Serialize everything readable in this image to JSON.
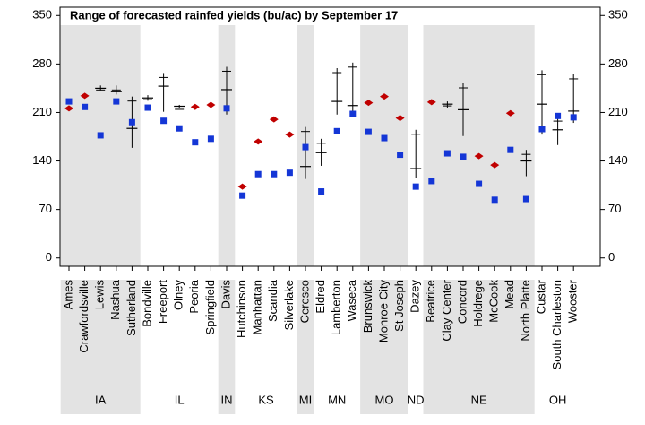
{
  "chart_data": {
    "type": "dot-range",
    "title": "Range of forecasted rainfed yields (bu/ac) by September 17",
    "groups": [
      {
        "name": "IA",
        "categories": [
          "Ames",
          "Crawfordsville",
          "Lewis",
          "Nashua",
          "Sutherland"
        ]
      },
      {
        "name": "IL",
        "categories": [
          "Bondville",
          "Freeport",
          "Olney",
          "Peoria",
          "Springfield"
        ]
      },
      {
        "name": "IN",
        "categories": [
          "Davis"
        ]
      },
      {
        "name": "KS",
        "categories": [
          "Hutchinson",
          "Manhattan",
          "Scandia",
          "Silverlake"
        ]
      },
      {
        "name": "MI",
        "categories": [
          "Ceresco"
        ]
      },
      {
        "name": "MN",
        "categories": [
          "Eldred",
          "Lamberton",
          "Waseca"
        ]
      },
      {
        "name": "MO",
        "categories": [
          "Brunswick",
          "Monroe City",
          "St Joseph"
        ]
      },
      {
        "name": "ND",
        "categories": [
          "Dazey"
        ]
      },
      {
        "name": "NE",
        "categories": [
          "Beatrice",
          "Clay Center",
          "Concord",
          "Holdrege",
          "McCook",
          "Mead",
          "North Platte"
        ]
      },
      {
        "name": "OH",
        "categories": [
          "Custar",
          "South Charleston",
          "Wooster"
        ]
      }
    ],
    "series": [
      {
        "marker": "diamond",
        "color": "#c00000",
        "values": [
          216,
          234,
          null,
          null,
          null,
          null,
          null,
          null,
          218,
          221,
          null,
          103,
          168,
          200,
          178,
          null,
          null,
          null,
          null,
          224,
          233,
          202,
          null,
          225,
          null,
          null,
          147,
          134,
          209,
          null,
          null,
          null,
          null
        ]
      },
      {
        "marker": "square",
        "color": "#1436d6",
        "values": [
          226,
          218,
          177,
          226,
          196,
          217,
          198,
          187,
          167,
          172,
          216,
          90,
          121,
          121,
          123,
          160,
          96,
          183,
          208,
          182,
          173,
          149,
          103,
          111,
          151,
          146,
          107,
          84,
          156,
          85,
          186,
          205,
          203
        ]
      }
    ],
    "range": {
      "color": "#000000",
      "low": [
        null,
        null,
        242,
        236,
        159,
        227,
        211,
        216,
        null,
        null,
        207,
        null,
        null,
        null,
        null,
        114,
        133,
        207,
        207,
        null,
        null,
        null,
        116,
        null,
        217,
        176,
        null,
        null,
        null,
        118,
        178,
        163,
        195
      ],
      "high": [
        null,
        null,
        249,
        249,
        233,
        235,
        267,
        221,
        null,
        null,
        276,
        null,
        null,
        null,
        null,
        189,
        172,
        274,
        282,
        null,
        null,
        null,
        185,
        null,
        226,
        252,
        null,
        null,
        null,
        156,
        271,
        204,
        265
      ],
      "mid": [
        null,
        null,
        245,
        240,
        187,
        231,
        248,
        219,
        null,
        null,
        243,
        null,
        null,
        null,
        null,
        132,
        152,
        226,
        220,
        null,
        null,
        null,
        129,
        null,
        222,
        214,
        null,
        null,
        null,
        140,
        222,
        185,
        212
      ]
    },
    "ylim": [
      -12,
      362
    ],
    "yticks": [
      0,
      70,
      140,
      210,
      280,
      350
    ]
  }
}
